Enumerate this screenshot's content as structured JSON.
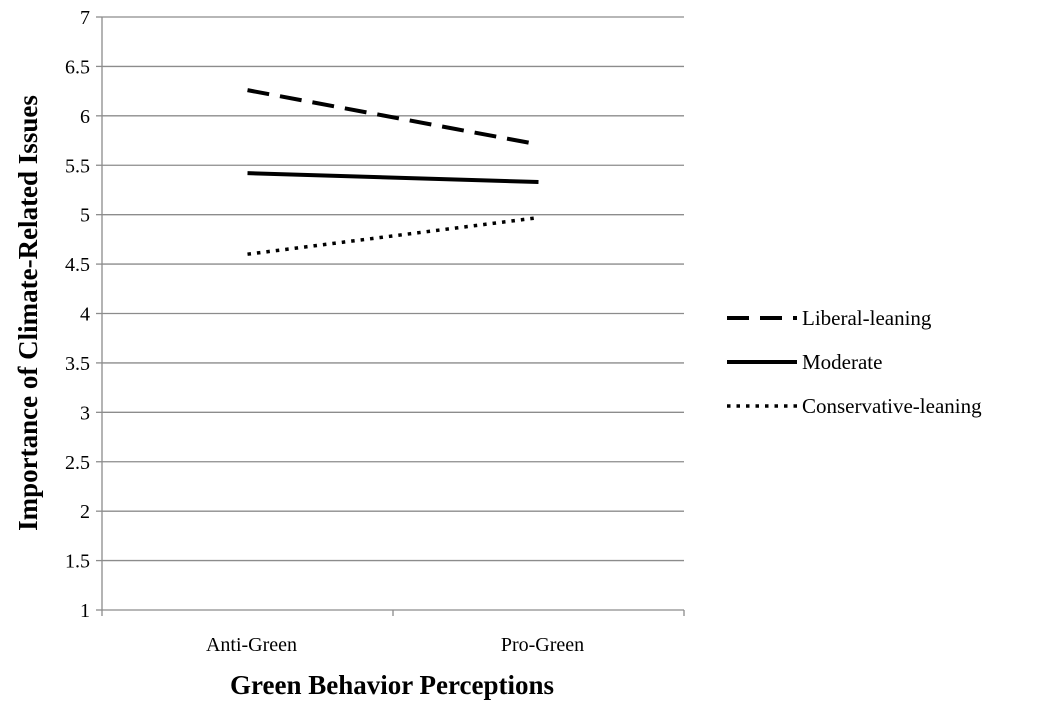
{
  "chart_data": {
    "type": "line",
    "title": "",
    "xlabel": "Green Behavior Perceptions",
    "ylabel": "Importance of Climate-Related Issues",
    "categories": [
      "Anti-Green",
      "Pro-Green"
    ],
    "ylim": [
      1,
      7
    ],
    "yticks": [
      "1",
      "1.5",
      "2",
      "2.5",
      "3",
      "3.5",
      "4",
      "4.5",
      "5",
      "5.5",
      "6",
      "6.5",
      "7"
    ],
    "grid": "horizontal",
    "legend_position": "right",
    "series": [
      {
        "name": "Liberal-leaning",
        "values": [
          6.26,
          5.71
        ],
        "style": "dashed",
        "color": "#000000"
      },
      {
        "name": "Moderate",
        "values": [
          5.42,
          5.33
        ],
        "style": "solid",
        "color": "#000000"
      },
      {
        "name": "Conservative-leaning",
        "values": [
          4.6,
          4.97
        ],
        "style": "dotted",
        "color": "#000000"
      }
    ]
  }
}
